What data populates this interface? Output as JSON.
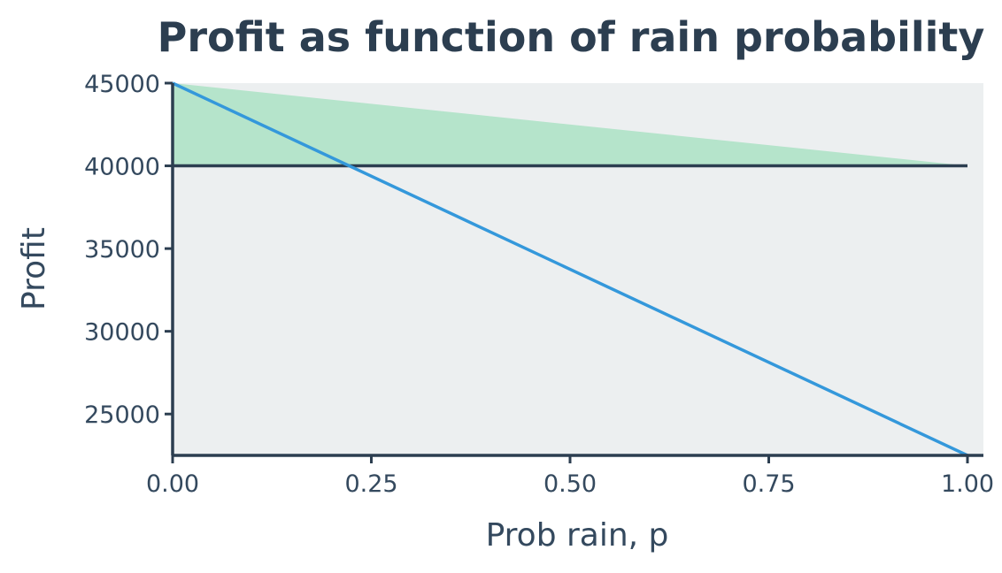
{
  "chart_data": {
    "type": "line",
    "title": "Profit as function of rain probability",
    "xlabel": "Prob rain, p",
    "ylabel": "Profit",
    "xlim": [
      0,
      1
    ],
    "ylim": [
      22500,
      45000
    ],
    "x_ticks": [
      0,
      0.25,
      0.5,
      0.75,
      1
    ],
    "x_tick_labels": [
      "0.00",
      "0.25",
      "0.50",
      "0.75",
      "1.00"
    ],
    "y_ticks": [
      25000,
      30000,
      35000,
      40000,
      45000
    ],
    "y_tick_labels": [
      "25000",
      "30000",
      "35000",
      "40000",
      "45000"
    ],
    "grid": false,
    "series": [
      {
        "x": [
          0,
          1
        ],
        "y": [
          40000,
          40000
        ],
        "color": "#2c3e50"
      },
      {
        "x": [
          0,
          1
        ],
        "y": [
          45000,
          22500
        ],
        "color": "#3498db"
      }
    ],
    "shaded_region": {
      "x": [
        0,
        1
      ],
      "y_upper": [
        45000,
        40000
      ],
      "y_lower": [
        40000,
        40000
      ],
      "color": "#b5e4cb"
    },
    "colors": {
      "plot_background": "#eceff0",
      "axis": "#2c3e50",
      "text": "#34495e",
      "title": "#2c3e50"
    }
  }
}
